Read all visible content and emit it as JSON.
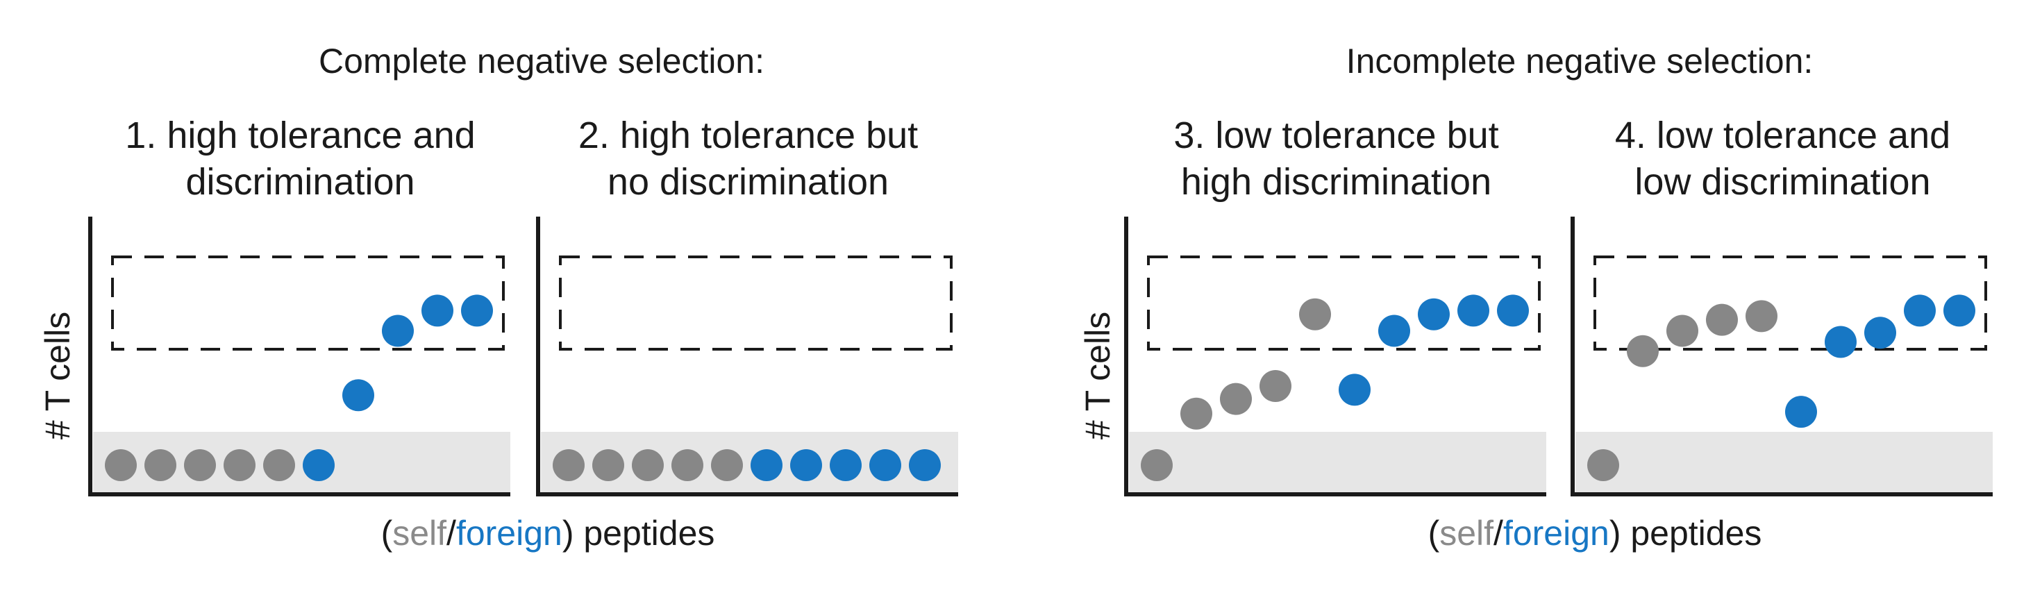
{
  "colors": {
    "self": "#878787",
    "foreign": "#1777c4",
    "band": "#e6e6e6",
    "axis": "#1a1a1a"
  },
  "groups": [
    {
      "title": "Complete negative selection:",
      "ylabel": "# T cells",
      "xlabel": {
        "open": "(",
        "self": "self",
        "slash": "/",
        "foreign": "foreign",
        "close": ") peptides"
      }
    },
    {
      "title": "Incomplete negative selection:",
      "ylabel": "# T cells",
      "xlabel": {
        "open": "(",
        "self": "self",
        "slash": "/",
        "foreign": "foreign",
        "close": ") peptides"
      }
    }
  ],
  "panels": [
    {
      "title_line1": "1. high tolerance and",
      "title_line2": "discrimination",
      "peptides": [
        {
          "type": "self",
          "level": 0
        },
        {
          "type": "self",
          "level": 0
        },
        {
          "type": "self",
          "level": 0
        },
        {
          "type": "self",
          "level": 0
        },
        {
          "type": "self",
          "level": 0
        },
        {
          "type": "foreign",
          "level": 0
        },
        {
          "type": "foreign",
          "level": 0.38
        },
        {
          "type": "foreign",
          "level": 0.73
        },
        {
          "type": "foreign",
          "level": 0.84
        },
        {
          "type": "foreign",
          "level": 0.84
        }
      ]
    },
    {
      "title_line1": "2. high tolerance but",
      "title_line2": "no discrimination",
      "peptides": [
        {
          "type": "self",
          "level": 0
        },
        {
          "type": "self",
          "level": 0
        },
        {
          "type": "self",
          "level": 0
        },
        {
          "type": "self",
          "level": 0
        },
        {
          "type": "self",
          "level": 0
        },
        {
          "type": "foreign",
          "level": 0
        },
        {
          "type": "foreign",
          "level": 0
        },
        {
          "type": "foreign",
          "level": 0
        },
        {
          "type": "foreign",
          "level": 0
        },
        {
          "type": "foreign",
          "level": 0
        }
      ]
    },
    {
      "title_line1": "3. low tolerance but",
      "title_line2": "high discrimination",
      "peptides": [
        {
          "type": "self",
          "level": 0
        },
        {
          "type": "self",
          "level": 0.28
        },
        {
          "type": "self",
          "level": 0.36
        },
        {
          "type": "self",
          "level": 0.43
        },
        {
          "type": "self",
          "level": 0.82
        },
        {
          "type": "foreign",
          "level": 0.41
        },
        {
          "type": "foreign",
          "level": 0.73
        },
        {
          "type": "foreign",
          "level": 0.82
        },
        {
          "type": "foreign",
          "level": 0.84
        },
        {
          "type": "foreign",
          "level": 0.84
        }
      ]
    },
    {
      "title_line1": "4. low tolerance and",
      "title_line2": "low discrimination",
      "peptides": [
        {
          "type": "self",
          "level": 0
        },
        {
          "type": "self",
          "level": 0.62
        },
        {
          "type": "self",
          "level": 0.73
        },
        {
          "type": "self",
          "level": 0.79
        },
        {
          "type": "self",
          "level": 0.81
        },
        {
          "type": "foreign",
          "level": 0.29
        },
        {
          "type": "foreign",
          "level": 0.67
        },
        {
          "type": "foreign",
          "level": 0.72
        },
        {
          "type": "foreign",
          "level": 0.84
        },
        {
          "type": "foreign",
          "level": 0.84
        }
      ]
    }
  ]
}
